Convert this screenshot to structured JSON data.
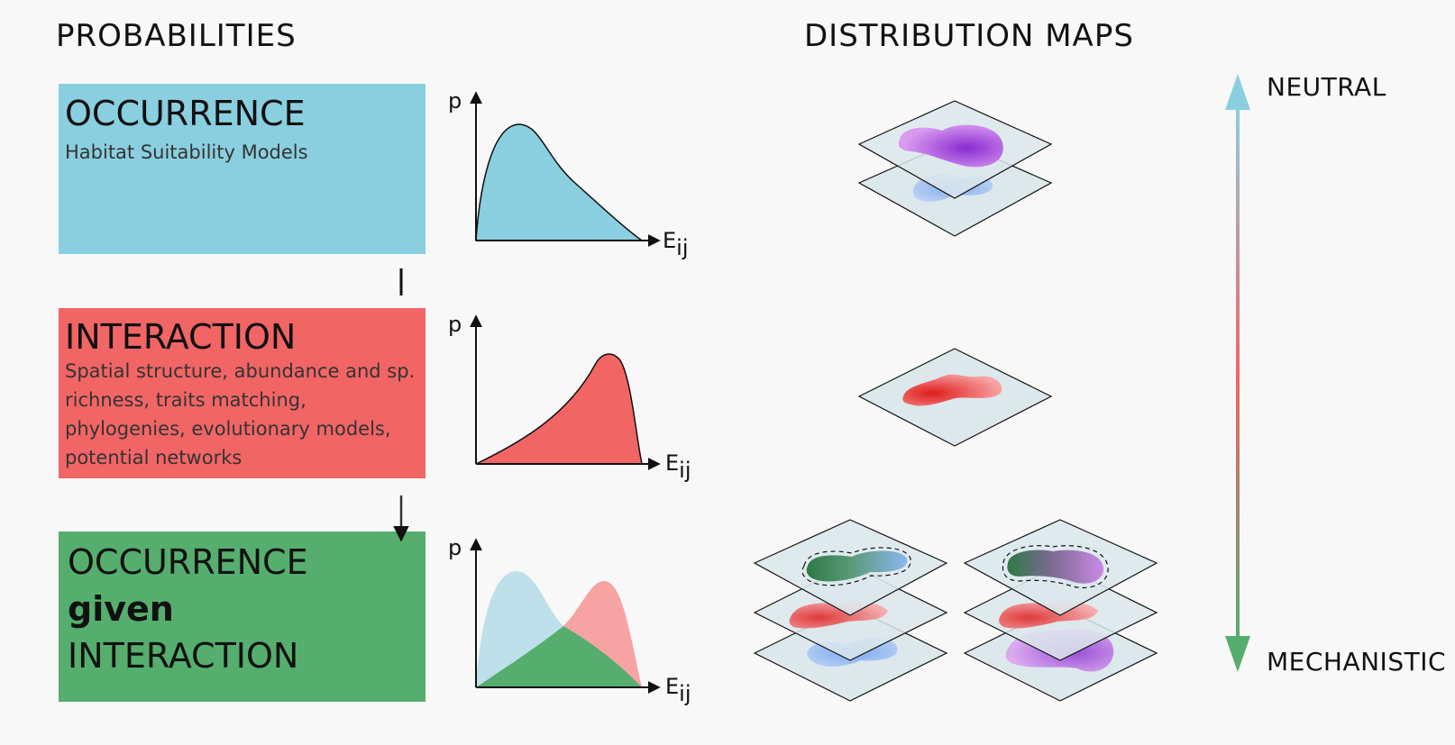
{
  "headings": {
    "probabilities": "PROBABILITIES",
    "distribution_maps": "DISTRIBUTION MAPS"
  },
  "boxes": {
    "occurrence": {
      "title": "OCCURRENCE",
      "subtitle": "Habitat Suitability Models",
      "color": "#8acfe0"
    },
    "interaction": {
      "title": "INTERACTION",
      "lines": [
        "Spatial structure, abundance and sp.",
        "richness, traits matching,",
        "phylogenies, evolutionary models,",
        "potential networks"
      ],
      "color": "#f26565"
    },
    "given": {
      "line1": "OCCURRENCE",
      "line2": "given",
      "line3": "INTERACTION",
      "color": "#55ae6e"
    }
  },
  "plots": {
    "y_label": "p",
    "x_label_main": "E",
    "x_label_sub": "ij"
  },
  "scale": {
    "top": "NEUTRAL",
    "bottom": "MECHANISTIC",
    "top_color": "#8acfe0",
    "mid_color": "#f26565",
    "bottom_color": "#55ae6e"
  }
}
